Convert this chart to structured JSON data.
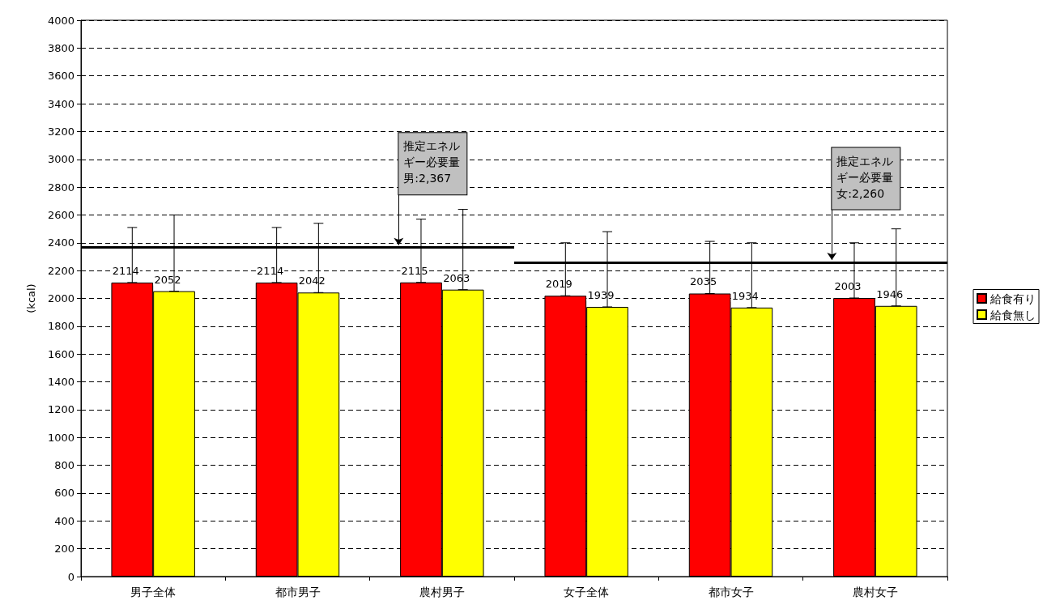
{
  "chart_data": {
    "type": "bar",
    "ylabel": "(kcal)",
    "categories": [
      "男子全体",
      "都市男子",
      "農村男子",
      "女子全体",
      "都市女子",
      "農村女子"
    ],
    "series": [
      {
        "name": "給食有り",
        "color": "#ff0000",
        "values": [
          2114,
          2114,
          2115,
          2019,
          2035,
          2003
        ],
        "errors": [
          [
            2114,
            2510
          ],
          [
            2114,
            2510
          ],
          [
            2115,
            2570
          ],
          [
            2019,
            2400
          ],
          [
            2035,
            2410
          ],
          [
            2003,
            2400
          ]
        ]
      },
      {
        "name": "給食無し",
        "color": "#ffff00",
        "values": [
          2052,
          2042,
          2063,
          1939,
          1934,
          1946
        ],
        "errors": [
          [
            2052,
            2600
          ],
          [
            2042,
            2540
          ],
          [
            2063,
            2640
          ],
          [
            1939,
            2480
          ],
          [
            1934,
            2400
          ],
          [
            1946,
            2500
          ]
        ]
      }
    ],
    "ylim": [
      0,
      4000
    ],
    "yticks": [
      0,
      200,
      400,
      600,
      800,
      1000,
      1200,
      1400,
      1600,
      1800,
      2000,
      2200,
      2400,
      2600,
      2800,
      3000,
      3200,
      3400,
      3600,
      3800,
      4000
    ],
    "ref_lines": [
      {
        "axis": "y",
        "value": 2367,
        "label": "推定エネルギー必要量男:2,367",
        "color": "#000000"
      },
      {
        "axis": "y",
        "value": 2260,
        "label": "推定エネルギー必要量女:2,260",
        "color": "#000000"
      }
    ],
    "data_labels": true,
    "grid": "y",
    "legend": "right"
  }
}
